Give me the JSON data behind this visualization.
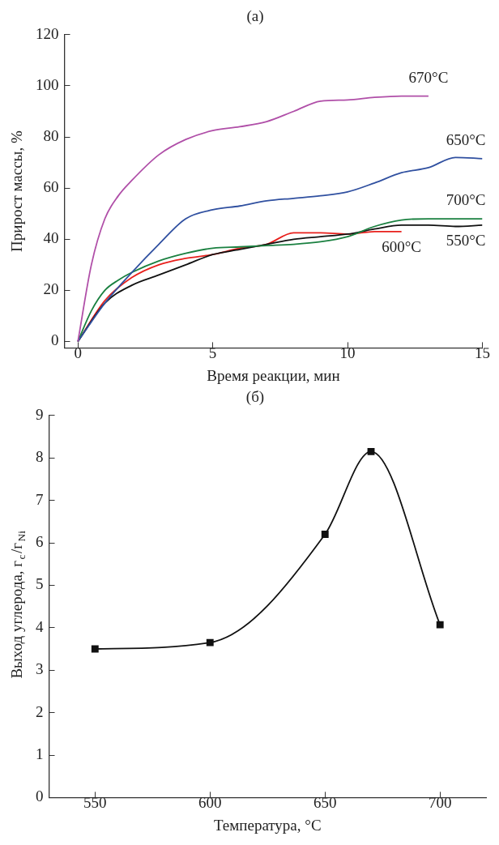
{
  "chart_data": [
    {
      "type": "line",
      "title": "(a)",
      "xlabel": "Время реакции, мин",
      "ylabel": "Прирост массы, %",
      "xlim": [
        -0.5,
        15
      ],
      "ylim": [
        -2.5,
        120
      ],
      "xticks": [
        0,
        5,
        10,
        15
      ],
      "yticks": [
        0,
        20,
        40,
        60,
        80,
        100,
        120
      ],
      "grid": false,
      "marker": "none",
      "line_style": "solid",
      "series": [
        {
          "name": "670°C",
          "color": "#b04fa8",
          "x": [
            0,
            0.5,
            1,
            1.5,
            2,
            3,
            4,
            5,
            6,
            7,
            8,
            9,
            10,
            11,
            12,
            13
          ],
          "values": [
            0,
            30,
            48,
            57,
            63,
            73,
            79,
            82.5,
            84,
            86,
            90,
            94,
            94.5,
            95.5,
            96,
            96
          ]
        },
        {
          "name": "650°C",
          "color": "#3050a0",
          "x": [
            0,
            1,
            2,
            3,
            4,
            5,
            6,
            7,
            8,
            9,
            10,
            11,
            12,
            13,
            14,
            15
          ],
          "values": [
            0,
            15,
            27,
            38,
            48,
            51.5,
            53,
            55,
            56,
            57,
            58.5,
            62,
            66,
            68,
            72,
            71.5
          ]
        },
        {
          "name": "700°C",
          "color": "#1a8040",
          "x": [
            0,
            0.5,
            1,
            1.5,
            2,
            3,
            4,
            5,
            6,
            7,
            8,
            9,
            10,
            11,
            12,
            13,
            15
          ],
          "values": [
            0,
            12,
            20,
            24,
            27,
            31.5,
            34.5,
            36.5,
            37,
            37.5,
            38,
            39,
            41,
            45,
            47.5,
            48,
            48
          ]
        },
        {
          "name": "550°C",
          "color": "#111111",
          "x": [
            0,
            1,
            2,
            3,
            4,
            5,
            6,
            7,
            8,
            9,
            10,
            11,
            12,
            13,
            14,
            15
          ],
          "values": [
            0,
            15,
            22,
            26,
            30,
            34,
            36,
            38,
            40,
            41,
            42,
            44,
            45.5,
            45.5,
            45,
            45.5
          ]
        },
        {
          "name": "600°C",
          "color": "#e8201c",
          "x": [
            0,
            1,
            2,
            3,
            4,
            5,
            6,
            7,
            8,
            9,
            10,
            11,
            12
          ],
          "values": [
            0,
            16,
            25,
            30,
            32.5,
            34,
            36.5,
            38,
            42.5,
            42.5,
            42,
            43,
            43
          ]
        }
      ]
    },
    {
      "type": "line",
      "title": "(б)",
      "xlabel": "Температура, °С",
      "ylabel": "Выход углерода, г$_{c}$/г$_{Ni}$",
      "xlim": [
        530,
        720
      ],
      "ylim": [
        0,
        9
      ],
      "xticks": [
        550,
        600,
        650,
        700
      ],
      "yticks": [
        0,
        1,
        2,
        3,
        4,
        5,
        6,
        7,
        8,
        9
      ],
      "grid": false,
      "marker": "square",
      "line_style": "solid",
      "series": [
        {
          "color": "#111111",
          "x": [
            550,
            600,
            650,
            670,
            700
          ],
          "values": [
            3.5,
            3.65,
            6.2,
            8.15,
            4.07
          ]
        }
      ]
    }
  ]
}
